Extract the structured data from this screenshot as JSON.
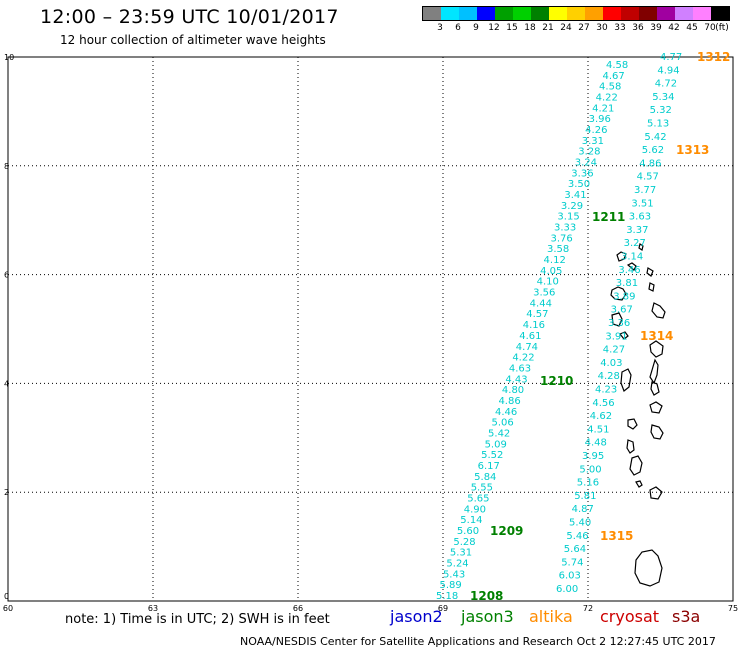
{
  "title": "12:00 – 23:59 UTC 10/01/2017",
  "subtitle": "12 hour collection of altimeter wave heights",
  "legend": {
    "swatch_colors": [
      "#808080",
      "#00e5ff",
      "#00c0ff",
      "#0000ff",
      "#00a000",
      "#00d000",
      "#008000",
      "#ffff00",
      "#ffd000",
      "#ffa000",
      "#ff0000",
      "#c00000",
      "#800000",
      "#a000a0",
      "#d080ff",
      "#ff80ff",
      "#000000"
    ],
    "labels": [
      "3",
      "6",
      "9",
      "12",
      "15",
      "18",
      "21",
      "24",
      "27",
      "30",
      "33",
      "36",
      "39",
      "42",
      "45",
      "70",
      "(ft)"
    ]
  },
  "axes": {
    "x_ticks": [
      "60",
      "63",
      "66",
      "69",
      "72",
      "75"
    ],
    "y_ticks": [
      "0",
      "2",
      "4",
      "6",
      "8",
      "10"
    ]
  },
  "orbit_labels": [
    {
      "text": "1312",
      "color": "#ff8c00"
    },
    {
      "text": "1313",
      "color": "#ff8c00"
    },
    {
      "text": "1211",
      "color": "#008000"
    },
    {
      "text": "1314",
      "color": "#ff8c00"
    },
    {
      "text": "1210",
      "color": "#008000"
    },
    {
      "text": "1209",
      "color": "#008000"
    },
    {
      "text": "1315",
      "color": "#ff8c00"
    },
    {
      "text": "1208",
      "color": "#008000"
    }
  ],
  "track_left": [
    "4.58",
    "4.67",
    "4.58",
    "4.22",
    "4.21",
    "3.96",
    "4.26",
    "3.31",
    "3.28",
    "3.24",
    "3.36",
    "3.50",
    "3.41",
    "3.29",
    "3.15",
    "3.33",
    "3.76",
    "3.58",
    "4.12",
    "4.05",
    "4.10",
    "3.56",
    "4.44",
    "4.57",
    "4.16",
    "4.61",
    "4.74",
    "4.22",
    "4.63",
    "4.43",
    "4.80",
    "4.86",
    "4.46",
    "5.06",
    "5.42",
    "5.09",
    "5.52",
    "6.17",
    "5.84",
    "5.55",
    "5.65",
    "4.90",
    "5.14",
    "5.60",
    "5.28",
    "5.31",
    "5.24",
    "5.43",
    "5.89",
    "5.18"
  ],
  "track_right": [
    "4.77",
    "4.94",
    "4.72",
    "5.34",
    "5.32",
    "5.13",
    "5.42",
    "5.62",
    "4.86",
    "4.57",
    "3.77",
    "3.51",
    "3.63",
    "3.37",
    "3.27",
    "3.14",
    "3.46",
    "3.81",
    "3.89",
    "3.67",
    "3.36",
    "3.91",
    "4.27",
    "4.03",
    "4.28",
    "4.23",
    "4.56",
    "4.62",
    "4.51",
    "4.48",
    "3.95",
    "5.00",
    "5.16",
    "5.81",
    "4.87",
    "5.40",
    "5.46",
    "5.64",
    "5.74",
    "6.03",
    "6.00"
  ],
  "note": "note:  1) Time is in UTC;  2) SWH is in feet",
  "satellites": [
    {
      "name": "jason2",
      "color": "#0000cc"
    },
    {
      "name": "jason3",
      "color": "#008000"
    },
    {
      "name": "altika",
      "color": "#ff8c00"
    },
    {
      "name": "cryosat",
      "color": "#cc0000"
    },
    {
      "name": "s3a",
      "color": "#8b0000"
    }
  ],
  "credit": "NOAA/NESDIS Center for Satellite Applications and Research      Oct  2 12:27:45 UTC 2017"
}
